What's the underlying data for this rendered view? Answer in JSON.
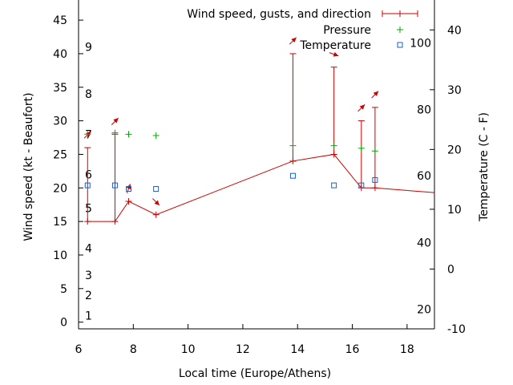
{
  "chart_data": {
    "type": "line",
    "xlabel": "Local time (Europe/Athens)",
    "ylabel_left": "Wind speed (kt - Beaufort)",
    "ylabel_right": "Temperature (C - F)",
    "xlim": [
      6,
      19
    ],
    "ylim_left": [
      -1,
      48
    ],
    "ylim_right": [
      -10,
      45
    ],
    "x_ticks": [
      6,
      8,
      10,
      12,
      14,
      16,
      18
    ],
    "y_left_ticks": [
      0,
      5,
      10,
      15,
      20,
      25,
      30,
      35,
      40,
      45
    ],
    "y_right_ticks": [
      -10,
      0,
      10,
      20,
      30,
      40
    ],
    "beaufort_labels": [
      {
        "label": "1",
        "kt": 1
      },
      {
        "label": "2",
        "kt": 4
      },
      {
        "label": "3",
        "kt": 7
      },
      {
        "label": "4",
        "kt": 11
      },
      {
        "label": "5",
        "kt": 17
      },
      {
        "label": "6",
        "kt": 22
      },
      {
        "label": "7",
        "kt": 28
      },
      {
        "label": "8",
        "kt": 34
      },
      {
        "label": "9",
        "kt": 41
      }
    ],
    "fahrenheit_labels": [
      {
        "label": "20",
        "c": -6.7
      },
      {
        "label": "40",
        "c": 4.4
      },
      {
        "label": "60",
        "c": 15.6
      },
      {
        "label": "80",
        "c": 26.7
      },
      {
        "label": "100",
        "c": 37.8
      }
    ],
    "legend": {
      "placement": "top-right",
      "entries": [
        "Wind speed, gusts, and direction",
        "Pressure",
        "Temperature"
      ]
    },
    "series": [
      {
        "name": "Wind speed, gusts, and direction",
        "color": "#cc0000",
        "marker": "plus",
        "points": [
          {
            "x": 6.33,
            "speed": 15,
            "gust": 26,
            "direction_deg": 225
          },
          {
            "x": 7.33,
            "speed": 15,
            "gust": 28,
            "direction_deg": 225
          },
          {
            "x": 7.83,
            "speed": 18,
            "gust": 18,
            "direction_deg": 200
          },
          {
            "x": 8.83,
            "speed": 16,
            "gust": 16,
            "direction_deg": 315
          },
          {
            "x": 13.83,
            "speed": 24,
            "gust": 40,
            "direction_deg": 225
          },
          {
            "x": 15.33,
            "speed": 25,
            "gust": 38,
            "direction_deg": 290
          },
          {
            "x": 16.33,
            "speed": 20,
            "gust": 30,
            "direction_deg": 225
          },
          {
            "x": 16.83,
            "speed": 20,
            "gust": 32,
            "direction_deg": 225
          },
          {
            "x": 19.0,
            "speed": 19.3,
            "gust": null,
            "direction_deg": null
          }
        ]
      },
      {
        "name": "Pressure",
        "color": "#00aa00",
        "marker": "plus",
        "x": [
          6.33,
          7.33,
          7.83,
          8.83,
          13.83,
          15.33,
          16.33,
          16.83
        ],
        "y": [
          28,
          28.2,
          28,
          27.8,
          26.3,
          26.3,
          25.9,
          25.5
        ]
      },
      {
        "name": "Temperature",
        "color": "#1a5fc8",
        "marker": "square",
        "x": [
          6.33,
          7.33,
          7.83,
          8.83,
          13.83,
          15.33,
          16.33,
          16.83
        ],
        "y": [
          14,
          14,
          13.4,
          13.4,
          15.6,
          14,
          14,
          14.9
        ]
      }
    ]
  }
}
